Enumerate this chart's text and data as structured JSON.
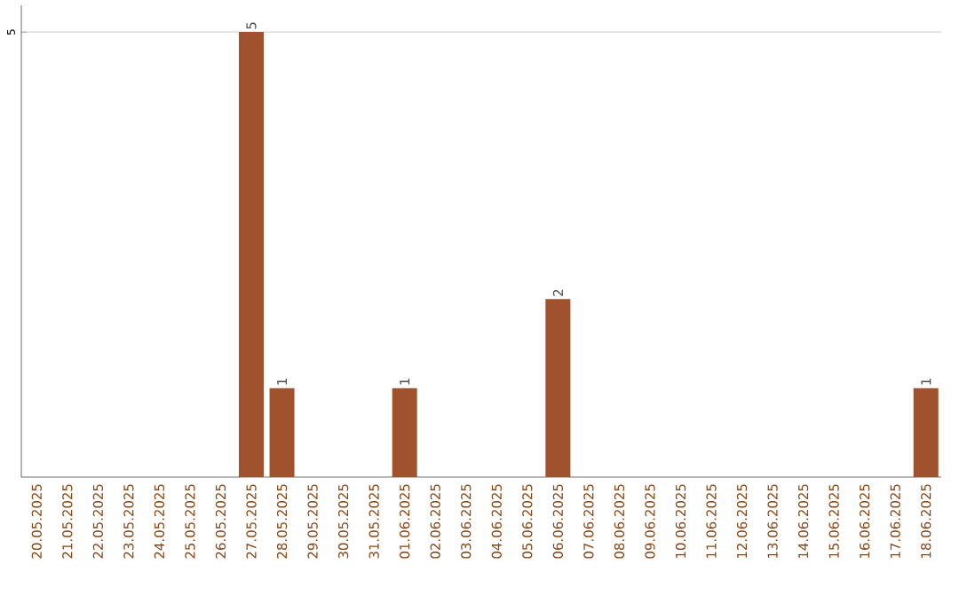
{
  "chart_data": {
    "type": "bar",
    "categories": [
      "20.05.2025",
      "21.05.2025",
      "22.05.2025",
      "23.05.2025",
      "24.05.2025",
      "25.05.2025",
      "26.05.2025",
      "27.05.2025",
      "28.05.2025",
      "29.05.2025",
      "30.05.2025",
      "31.05.2025",
      "01.06.2025",
      "02.06.2025",
      "03.06.2025",
      "04.06.2025",
      "05.06.2025",
      "06.06.2025",
      "07.06.2025",
      "08.06.2025",
      "09.06.2025",
      "10.06.2025",
      "11.06.2025",
      "12.06.2025",
      "13.06.2025",
      "14.06.2025",
      "15.06.2025",
      "16.06.2025",
      "17.06.2025",
      "18.06.2025"
    ],
    "values": [
      0,
      0,
      0,
      0,
      0,
      0,
      0,
      5,
      1,
      0,
      0,
      0,
      1,
      0,
      0,
      0,
      0,
      2,
      0,
      0,
      0,
      0,
      0,
      0,
      0,
      0,
      0,
      0,
      0,
      1
    ],
    "value_labels": [
      null,
      null,
      null,
      null,
      null,
      null,
      null,
      "5",
      "1",
      null,
      null,
      null,
      "1",
      null,
      null,
      null,
      null,
      "2",
      null,
      null,
      null,
      null,
      null,
      null,
      null,
      null,
      null,
      null,
      null,
      "1"
    ],
    "color": "#a0522d",
    "ylim": [
      0,
      5.3
    ],
    "yticks": [
      5
    ],
    "grid": "y"
  }
}
